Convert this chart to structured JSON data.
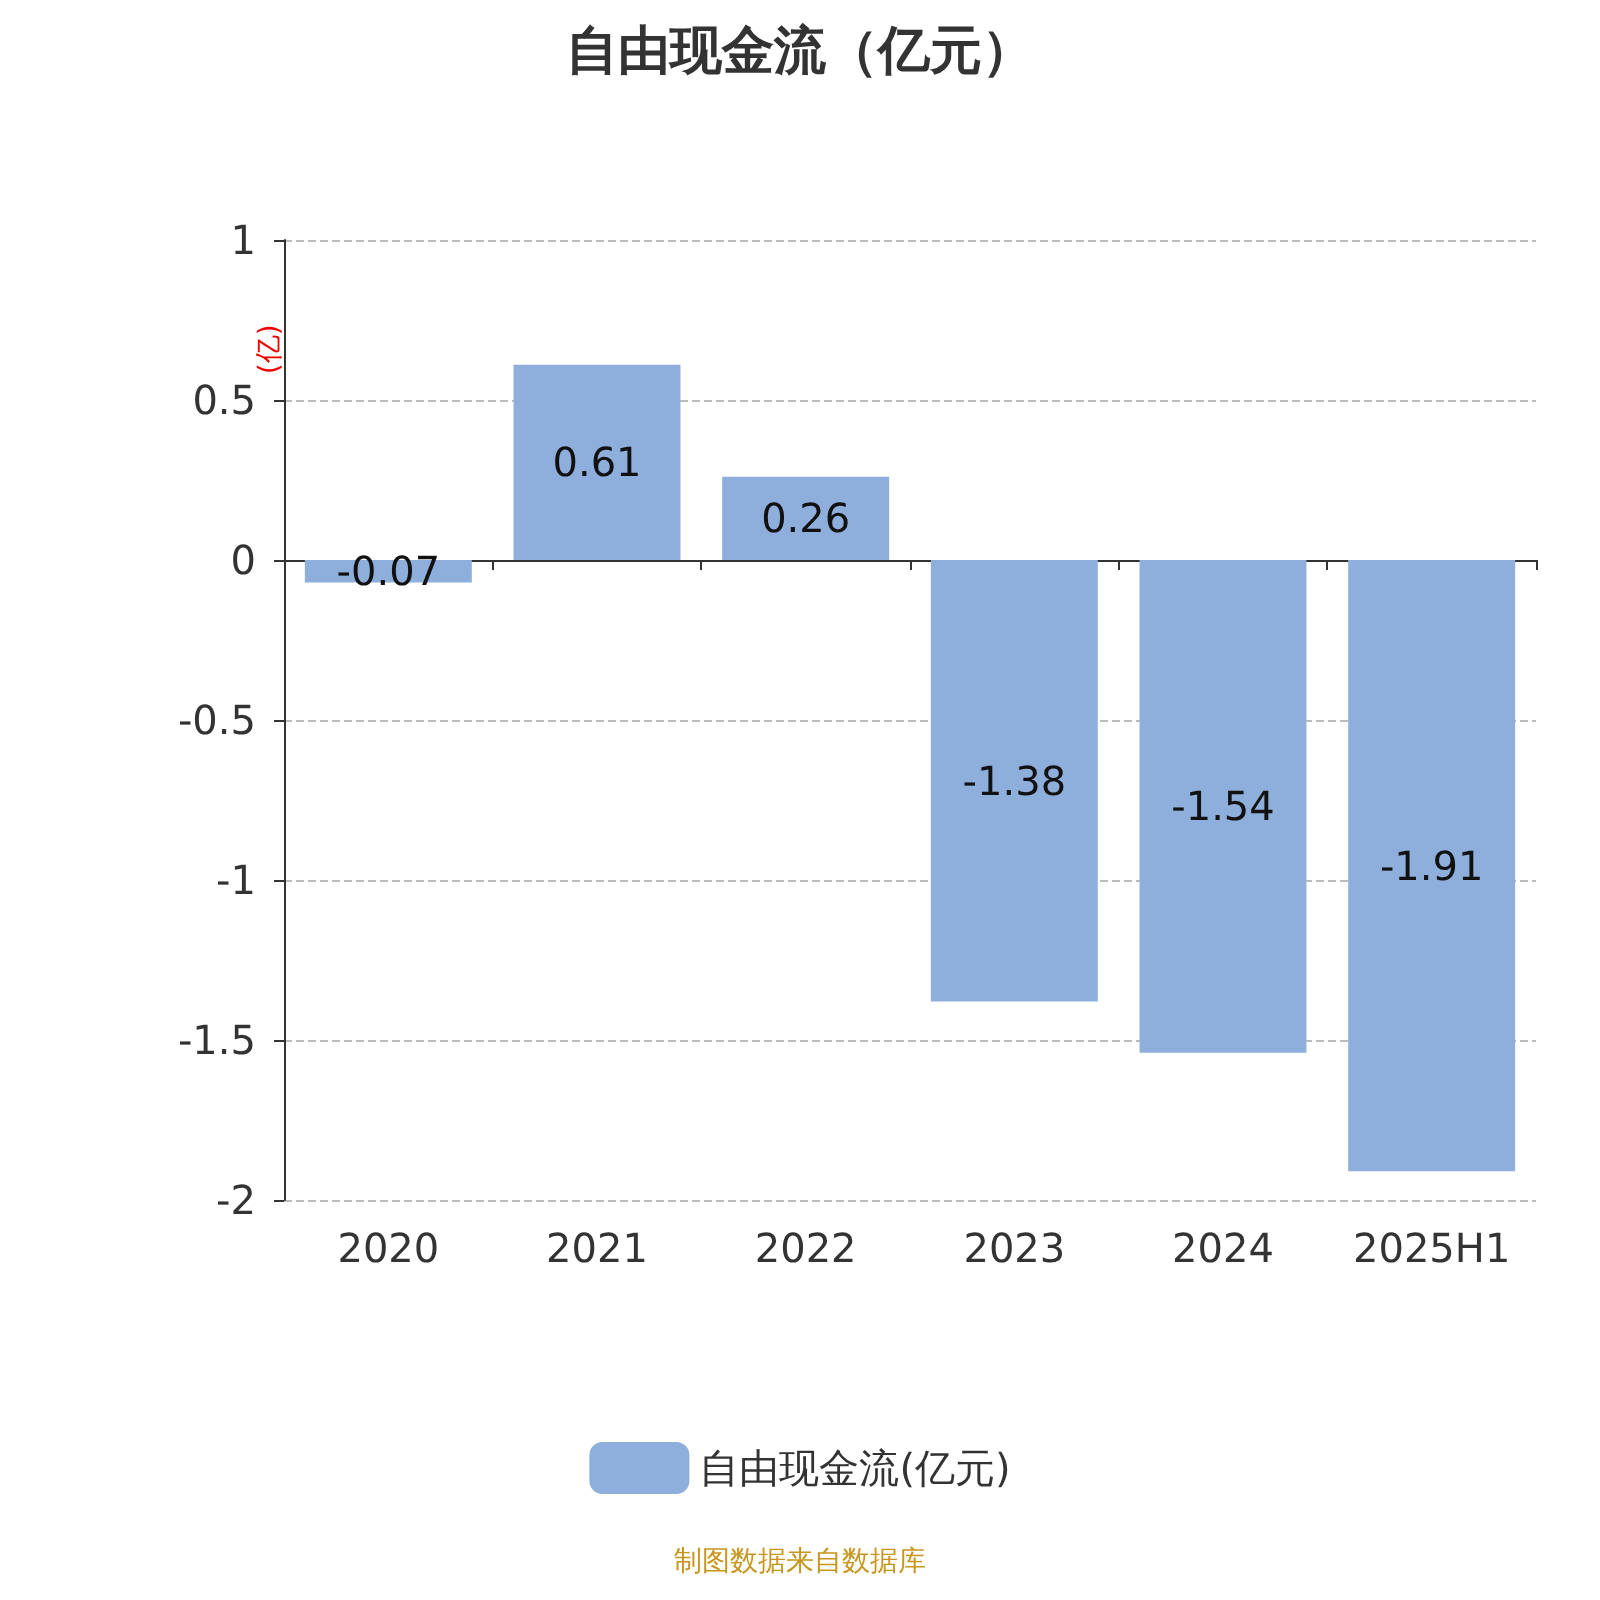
{
  "chart_data": {
    "type": "bar",
    "title": "自由现金流（亿元）",
    "ylabel": "(亿)",
    "categories": [
      "2020",
      "2021",
      "2022",
      "2023",
      "2024",
      "2025H1"
    ],
    "series": [
      {
        "name": "自由现金流(亿元)",
        "color": "#8eaedb",
        "values": [
          -0.07,
          0.61,
          0.26,
          -1.38,
          -1.54,
          -1.91
        ]
      }
    ],
    "ylim": [
      -2,
      1
    ],
    "yticks": [
      -2,
      -1.5,
      -1,
      -0.5,
      0,
      0.5,
      1
    ],
    "grid": "y",
    "legend": "bottom",
    "data_labels": true,
    "annotations": [
      "制图数据来自数据库"
    ]
  }
}
